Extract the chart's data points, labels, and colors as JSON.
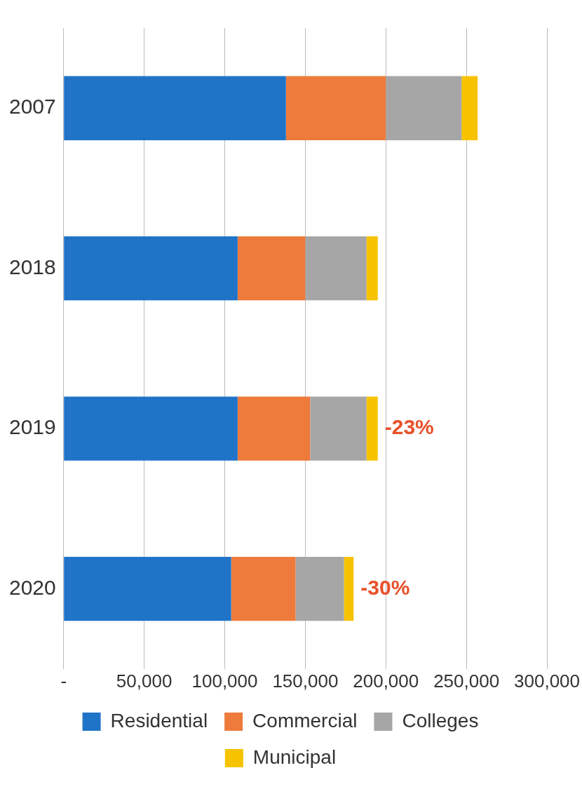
{
  "chart_data": {
    "type": "bar",
    "orientation": "horizontal",
    "stacked": true,
    "categories": [
      "2007",
      "2018",
      "2019",
      "2020"
    ],
    "series": [
      {
        "name": "Residential",
        "color": "#1f74c8",
        "values": [
          138000,
          108000,
          108000,
          104000
        ]
      },
      {
        "name": "Commercial",
        "color": "#ee7b3c",
        "values": [
          62000,
          42000,
          45000,
          40000
        ]
      },
      {
        "name": "Colleges",
        "color": "#a6a6a6",
        "values": [
          47000,
          38000,
          35000,
          30000
        ]
      },
      {
        "name": "Municipal",
        "color": "#f7c300",
        "values": [
          10000,
          7000,
          7000,
          6000
        ]
      }
    ],
    "xlim": [
      0,
      300000
    ],
    "xticks": [
      {
        "value": 0,
        "label": "-"
      },
      {
        "value": 50000,
        "label": "50,000"
      },
      {
        "value": 100000,
        "label": "100,000"
      },
      {
        "value": 150000,
        "label": "150,000"
      },
      {
        "value": 200000,
        "label": "200,000"
      },
      {
        "value": 250000,
        "label": "250,000"
      },
      {
        "value": 300000,
        "label": "300,000"
      }
    ],
    "grid": "x",
    "legend": "bottom",
    "annotations": [
      {
        "text": "-23%",
        "x": 195000,
        "y": "2019"
      },
      {
        "text": "-30%",
        "x": 180000,
        "y": "2020"
      }
    ]
  }
}
